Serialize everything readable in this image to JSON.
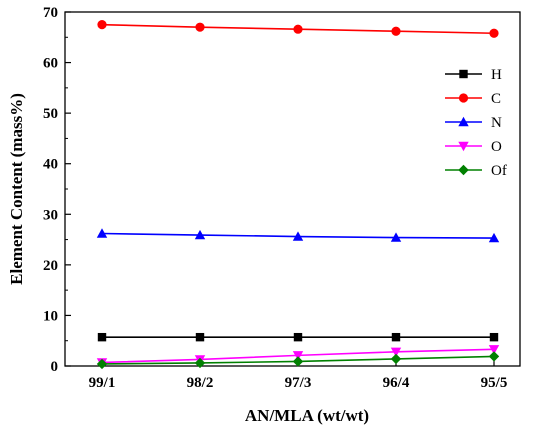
{
  "chart_data": {
    "type": "line",
    "xlabel": "AN/MLA (wt/wt)",
    "ylabel": "Element Content (mass%)",
    "categories": [
      "99/1",
      "98/2",
      "97/3",
      "96/4",
      "95/5"
    ],
    "ylim": [
      0,
      70
    ],
    "yticks": [
      0,
      10,
      20,
      30,
      40,
      50,
      60,
      70
    ],
    "grid": false,
    "legend_position": "right",
    "series": [
      {
        "name": "H",
        "color": "#000000",
        "marker": "square",
        "values": [
          5.7,
          5.7,
          5.7,
          5.7,
          5.7
        ]
      },
      {
        "name": "C",
        "color": "#ff0000",
        "marker": "circle",
        "values": [
          67.5,
          67.0,
          66.6,
          66.2,
          65.8
        ]
      },
      {
        "name": "N",
        "color": "#0000ff",
        "marker": "triangle-up",
        "values": [
          26.2,
          25.9,
          25.6,
          25.4,
          25.3
        ]
      },
      {
        "name": "O",
        "color": "#ff00ff",
        "marker": "triangle-down",
        "values": [
          0.7,
          1.3,
          2.1,
          2.8,
          3.3
        ]
      },
      {
        "name": "Of",
        "color": "#008000",
        "marker": "diamond",
        "values": [
          0.4,
          0.6,
          0.9,
          1.4,
          1.9
        ]
      }
    ]
  }
}
